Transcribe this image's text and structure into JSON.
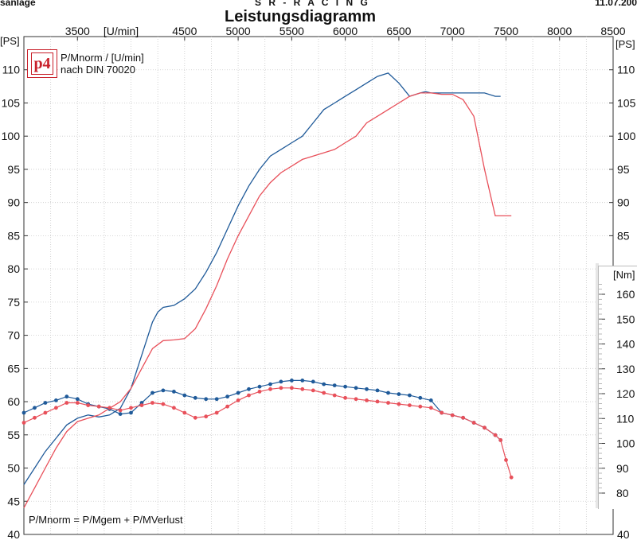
{
  "header": {
    "left": "sanlage",
    "center": "S R - R A C I N G",
    "right": "11.07.200"
  },
  "title": "Leistungsdiagramm",
  "legend": {
    "line1": "P/Mnorm / [U/min]",
    "line2": "nach DIN 70020",
    "logo_text": "p4"
  },
  "formula": "P/Mnorm = P/Mgem + P/MVerlust",
  "colors": {
    "blue": "#1f5a99",
    "red": "#e8505a",
    "grid": "#c9c9c9",
    "frame": "#333333"
  },
  "chart_data": [
    {
      "type": "line",
      "title": "Leistungsdiagramm",
      "x_unit_label": "[U/min]",
      "y_unit_label": "[PS]",
      "right_power_label": "[PS]",
      "xlim": [
        3000,
        8500
      ],
      "ylim": [
        40,
        115
      ],
      "x_ticks": [
        3500,
        4500,
        5000,
        5500,
        6000,
        6500,
        7000,
        7500,
        8000,
        8500
      ],
      "y_ticks": [
        40,
        45,
        50,
        55,
        60,
        65,
        70,
        75,
        80,
        85,
        90,
        95,
        100,
        105,
        110
      ],
      "y_ticks_right": [
        40,
        85,
        90,
        95,
        100,
        105,
        110
      ],
      "grid": true,
      "series": [
        {
          "color": "#1f5a99",
          "x": [
            3000,
            3100,
            3200,
            3300,
            3400,
            3500,
            3600,
            3700,
            3800,
            3900,
            4000,
            4100,
            4200,
            4250,
            4300,
            4400,
            4500,
            4600,
            4700,
            4800,
            4900,
            5000,
            5100,
            5200,
            5300,
            5400,
            5500,
            5600,
            5700,
            5800,
            5900,
            6000,
            6100,
            6200,
            6300,
            6400,
            6500,
            6600,
            6700,
            6750,
            6800,
            6900,
            7000,
            7100,
            7200,
            7300,
            7400,
            7450
          ],
          "y": [
            47.5,
            50,
            52.5,
            54.5,
            56.5,
            57.5,
            58,
            57.7,
            58,
            59,
            62,
            67,
            72,
            73.5,
            74.2,
            74.5,
            75.5,
            77,
            79.5,
            82.5,
            86,
            89.5,
            92.5,
            95,
            97,
            98,
            99,
            100,
            102,
            104,
            105,
            106,
            107,
            108,
            109,
            109.5,
            108,
            106,
            106.5,
            106.7,
            106.5,
            106.5,
            106.5,
            106.5,
            106.5,
            106.5,
            106,
            106
          ]
        },
        {
          "color": "#e8505a",
          "x": [
            3000,
            3100,
            3200,
            3300,
            3400,
            3500,
            3600,
            3700,
            3800,
            3900,
            4000,
            4100,
            4200,
            4300,
            4400,
            4500,
            4600,
            4700,
            4800,
            4900,
            5000,
            5100,
            5200,
            5300,
            5400,
            5500,
            5600,
            5700,
            5800,
            5900,
            6000,
            6100,
            6200,
            6300,
            6400,
            6500,
            6600,
            6700,
            6800,
            6900,
            7000,
            7100,
            7200,
            7300,
            7400,
            7450,
            7500,
            7550
          ],
          "y": [
            44,
            47,
            50,
            53,
            55.5,
            57,
            57.5,
            58,
            59,
            60,
            62,
            65,
            68,
            69.2,
            69.3,
            69.5,
            71,
            74,
            77.5,
            81.5,
            85,
            88,
            91,
            93,
            94.5,
            95.5,
            96.5,
            97,
            97.5,
            98,
            99,
            100,
            102,
            103,
            104,
            105,
            106,
            106.5,
            106.5,
            106.3,
            106.3,
            105.5,
            103,
            95,
            88,
            88,
            88,
            88
          ]
        }
      ]
    },
    {
      "type": "line",
      "y_unit_label": "[Nm]",
      "xlim": [
        3000,
        8500
      ],
      "ylim": [
        75,
        170
      ],
      "y_ticks": [
        80,
        90,
        100,
        110,
        120,
        130,
        140,
        150,
        160
      ],
      "series": [
        {
          "color": "#1f5a99",
          "markers": true,
          "x": [
            3000,
            3100,
            3200,
            3300,
            3400,
            3500,
            3600,
            3700,
            3800,
            3900,
            4000,
            4100,
            4200,
            4300,
            4400,
            4500,
            4600,
            4700,
            4800,
            4900,
            5000,
            5100,
            5200,
            5300,
            5400,
            5500,
            5600,
            5700,
            5800,
            5900,
            6000,
            6100,
            6200,
            6300,
            6400,
            6500,
            6600,
            6700,
            6800,
            6900,
            7000,
            7100,
            7200,
            7300,
            7400,
            7450
          ],
          "y": [
            112,
            114,
            116,
            117,
            118.5,
            117.5,
            115.5,
            114.5,
            113.5,
            111.5,
            112,
            116,
            120,
            121,
            120.5,
            119,
            118,
            117.5,
            117.5,
            118.5,
            120,
            121.5,
            122.5,
            123.5,
            124.5,
            125,
            125,
            124.5,
            123.5,
            123,
            122.5,
            122,
            121.5,
            121,
            120,
            119.5,
            119,
            118,
            117,
            112,
            111,
            110,
            108,
            106,
            103,
            101
          ]
        },
        {
          "color": "#e8505a",
          "markers": true,
          "x": [
            3000,
            3100,
            3200,
            3300,
            3400,
            3500,
            3600,
            3700,
            3800,
            3900,
            4000,
            4100,
            4200,
            4300,
            4400,
            4500,
            4600,
            4700,
            4800,
            4900,
            5000,
            5100,
            5200,
            5300,
            5400,
            5500,
            5600,
            5700,
            5800,
            5900,
            6000,
            6100,
            6200,
            6300,
            6400,
            6500,
            6600,
            6700,
            6800,
            6900,
            7000,
            7100,
            7200,
            7300,
            7400,
            7450,
            7500,
            7550
          ],
          "y": [
            108,
            110,
            112,
            114,
            116,
            116,
            115,
            114.5,
            114,
            113,
            114,
            115,
            116,
            115.5,
            114,
            112,
            110,
            110.5,
            112,
            114.5,
            117,
            119,
            120.5,
            121.5,
            122,
            122,
            121.5,
            121,
            120,
            119,
            118,
            117.5,
            117,
            116.5,
            116,
            115.5,
            115,
            114.5,
            114,
            112,
            111,
            110,
            108,
            106,
            103,
            101,
            93,
            86
          ]
        }
      ]
    }
  ]
}
